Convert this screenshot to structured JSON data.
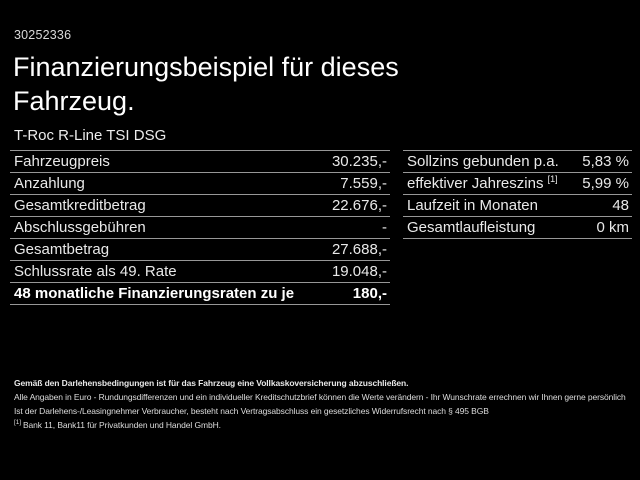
{
  "colors": {
    "background": "#000000",
    "text": "#e9e9e9",
    "title": "#ffffff",
    "divider": "#979797"
  },
  "header": {
    "vehicle_id": "30252336",
    "title_line1": "Finanzierungsbeispiel für dieses",
    "title_line2": "Fahrzeug.",
    "subtitle": "T-Roc R-Line TSI DSG"
  },
  "finance_table": {
    "rows": [
      {
        "label": "Fahrzeugpreis",
        "value": "30.235,-"
      },
      {
        "label": "Anzahlung",
        "value": "7.559,-"
      },
      {
        "label": "Gesamtkreditbetrag",
        "value": "22.676,-"
      },
      {
        "label": "Abschlussgebühren",
        "value": "-"
      },
      {
        "label": "Gesamtbetrag",
        "value": "27.688,-"
      },
      {
        "label": "Schlussrate als 49. Rate",
        "value": "19.048,-"
      },
      {
        "label": "48 monatliche Finanzierungsraten zu je",
        "value": "180,-"
      }
    ]
  },
  "conditions_table": {
    "rows": [
      {
        "label": "Sollzins gebunden p.a.",
        "marker": "",
        "value": "5,83 %"
      },
      {
        "label": "effektiver Jahreszins ",
        "marker": "[1]",
        "value": "5,99 %"
      },
      {
        "label": "Laufzeit in Monaten",
        "marker": "",
        "value": "48"
      },
      {
        "label": "Gesamtlaufleistung",
        "marker": "",
        "value": "0 km"
      }
    ]
  },
  "footer": {
    "insurance_note": "Gemäß den Darlehensbedingungen ist für das Fahrzeug eine Vollkaskoversicherung abzuschließen.",
    "disclaimer": "Alle Angaben in Euro - Rundungsdifferenzen und ein individueller Kreditschutzbrief können die Werte verändern - Ihr Wunschrate errechnen wir Ihnen gerne persönlich",
    "withdrawal_note": "Ist der Darlehens-/Leasingnehmer Verbraucher, besteht nach Vertragsabschluss ein gesetzliches Widerrufsrecht nach § 495 BGB",
    "footnote_marker": "[1]",
    "footnote": "Bank 11, Bank11 für Privatkunden und Handel GmbH."
  }
}
